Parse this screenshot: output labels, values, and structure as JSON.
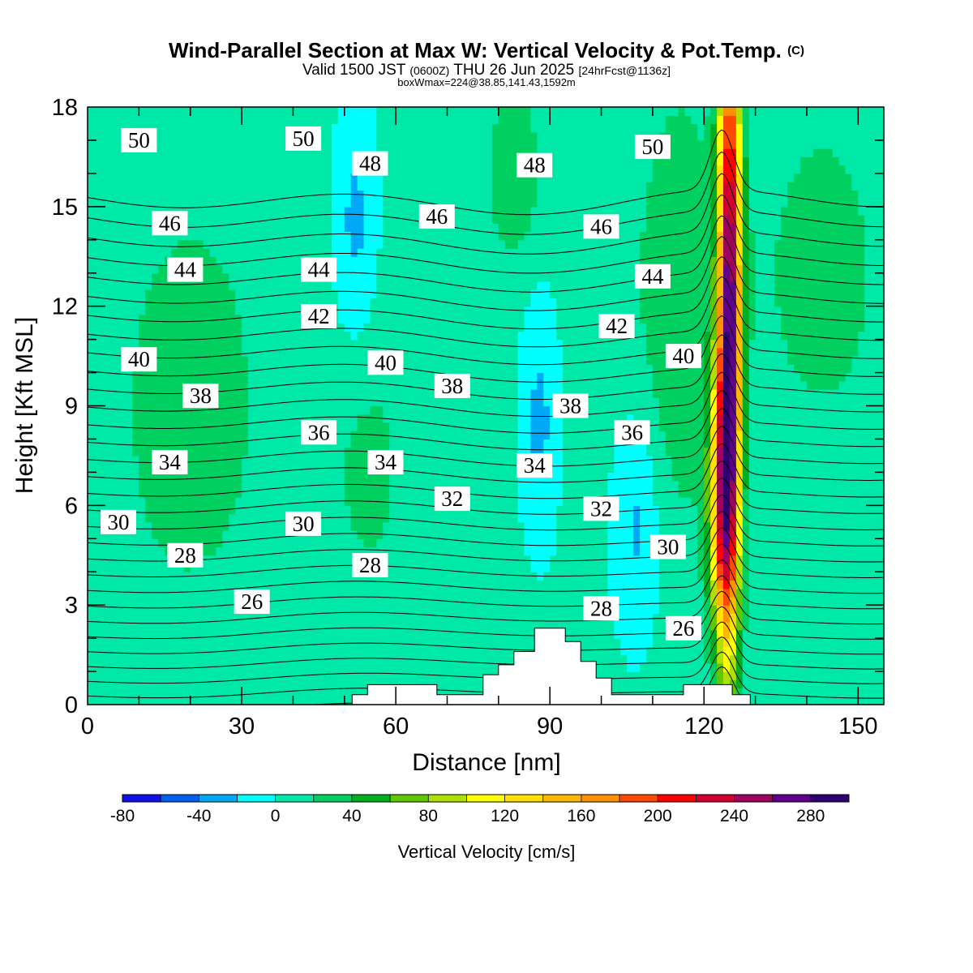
{
  "chart_data": {
    "type": "heatmap",
    "title": "Wind-Parallel Section at Max W: Vertical Velocity & Pot.Temp.",
    "title_mark": "(C)",
    "subtitle": {
      "prefix": "Valid 1500 JST ",
      "utc": "(0600Z)",
      "day": " THU 26 Jun 2025 ",
      "fcst": "[24hrFcst@1136z]"
    },
    "info_line": "boxWmax=224@38.85,141.43,1592m",
    "xlabel": "Distance [nm]",
    "ylabel": "Height [Kft MSL]",
    "xlim": [
      0,
      155
    ],
    "ylim": [
      0,
      18
    ],
    "x_ticks": [
      "0",
      "30",
      "60",
      "90",
      "120",
      "150"
    ],
    "y_ticks": [
      "0",
      "3",
      "6",
      "9",
      "12",
      "15",
      "18"
    ],
    "colorbar": {
      "label": "Vertical Velocity [cm/s]",
      "min": -80,
      "max": 300,
      "step": 20,
      "tick_labels": [
        "-80",
        "-40",
        "0",
        "40",
        "80",
        "120",
        "160",
        "200",
        "240",
        "280"
      ],
      "colors": [
        "#1010e8",
        "#0060f0",
        "#00a8f8",
        "#00ffff",
        "#00e8a8",
        "#00d060",
        "#00b020",
        "#60c800",
        "#b0e000",
        "#ffff00",
        "#ffe000",
        "#ffb800",
        "#ff9000",
        "#ff4800",
        "#ff0000",
        "#d00030",
        "#a00060",
        "#60008c",
        "#300070"
      ]
    },
    "w_background_cm_s": 5,
    "w_features": [
      {
        "x": 125.0,
        "y": 12.0,
        "value": 260,
        "x_halfwidth": 2.2,
        "y_halfwidth": 9.5
      },
      {
        "x": 123.5,
        "y": 6.0,
        "value": 150,
        "x_halfwidth": 2.6,
        "y_halfwidth": 4.0
      },
      {
        "x": 115.0,
        "y": 12.0,
        "value": 30,
        "x_halfwidth": 9.0,
        "y_halfwidth": 7.0
      },
      {
        "x": 143.0,
        "y": 13.0,
        "value": 22,
        "x_halfwidth": 14.0,
        "y_halfwidth": 6.0
      },
      {
        "x": 20.0,
        "y": 9.0,
        "value": 22,
        "x_halfwidth": 18.0,
        "y_halfwidth": 8.0
      },
      {
        "x": 83.0,
        "y": 16.0,
        "value": 35,
        "x_halfwidth": 5.0,
        "y_halfwidth": 2.5
      },
      {
        "x": 55.0,
        "y": 7.0,
        "value": 20,
        "x_halfwidth": 8.0,
        "y_halfwidth": 4.0
      },
      {
        "x": 52.0,
        "y": 14.5,
        "value": -30,
        "x_halfwidth": 4.0,
        "y_halfwidth": 3.5
      },
      {
        "x": 88.0,
        "y": 8.5,
        "value": -30,
        "x_halfwidth": 3.5,
        "y_halfwidth": 3.5
      },
      {
        "x": 107.0,
        "y": 5.5,
        "value": -32,
        "x_halfwidth": 4.5,
        "y_halfwidth": 3.5
      },
      {
        "x": 30.0,
        "y": 2.5,
        "value": -5,
        "x_halfwidth": 7.0,
        "y_halfwidth": 1.5
      },
      {
        "x": 147.0,
        "y": 5.0,
        "value": -5,
        "x_halfwidth": 5.0,
        "y_halfwidth": 3.0
      }
    ],
    "terrain_kft": {
      "x": [
        0,
        51.5,
        51.5,
        54.5,
        54.5,
        68,
        68,
        77,
        77,
        80,
        80,
        83,
        83,
        87,
        87,
        93,
        93,
        96,
        96,
        99,
        99,
        102,
        102,
        116,
        116,
        125.5,
        125.5,
        129,
        129,
        155
      ],
      "height": [
        0,
        0,
        0.3,
        0.3,
        0.6,
        0.6,
        0.3,
        0.3,
        0.9,
        0.9,
        1.2,
        1.2,
        1.6,
        1.6,
        2.3,
        2.3,
        1.9,
        1.9,
        1.3,
        1.3,
        0.8,
        0.8,
        0.3,
        0.3,
        0.6,
        0.6,
        0.3,
        0.3,
        0,
        0
      ]
    },
    "theta_contours": {
      "interval": 1,
      "min": 23,
      "max": 53,
      "ridge": {
        "x": 123.5,
        "depth_kft": 1.2,
        "halfwidth": 3.2
      }
    },
    "theta_labels": [
      {
        "text": "50",
        "x": 10,
        "y": 17.0
      },
      {
        "text": "50",
        "x": 42,
        "y": 17.05
      },
      {
        "text": "50",
        "x": 110,
        "y": 16.8
      },
      {
        "text": "48",
        "x": 55,
        "y": 16.3
      },
      {
        "text": "48",
        "x": 87,
        "y": 16.25
      },
      {
        "text": "46",
        "x": 16,
        "y": 14.5
      },
      {
        "text": "46",
        "x": 68,
        "y": 14.7
      },
      {
        "text": "46",
        "x": 100,
        "y": 14.4
      },
      {
        "text": "44",
        "x": 19,
        "y": 13.1
      },
      {
        "text": "44",
        "x": 45,
        "y": 13.1
      },
      {
        "text": "44",
        "x": 110,
        "y": 12.9
      },
      {
        "text": "42",
        "x": 45,
        "y": 11.7
      },
      {
        "text": "42",
        "x": 103,
        "y": 11.4
      },
      {
        "text": "40",
        "x": 10,
        "y": 10.4
      },
      {
        "text": "40",
        "x": 58,
        "y": 10.3
      },
      {
        "text": "40",
        "x": 116,
        "y": 10.5
      },
      {
        "text": "38",
        "x": 22,
        "y": 9.3
      },
      {
        "text": "38",
        "x": 71,
        "y": 9.6
      },
      {
        "text": "38",
        "x": 94,
        "y": 9.0
      },
      {
        "text": "36",
        "x": 45,
        "y": 8.2
      },
      {
        "text": "36",
        "x": 106,
        "y": 8.2
      },
      {
        "text": "34",
        "x": 16,
        "y": 7.3
      },
      {
        "text": "34",
        "x": 58,
        "y": 7.3
      },
      {
        "text": "34",
        "x": 87,
        "y": 7.2
      },
      {
        "text": "32",
        "x": 71,
        "y": 6.2
      },
      {
        "text": "32",
        "x": 100,
        "y": 5.9
      },
      {
        "text": "30",
        "x": 6,
        "y": 5.5
      },
      {
        "text": "30",
        "x": 42,
        "y": 5.45
      },
      {
        "text": "30",
        "x": 113,
        "y": 4.75
      },
      {
        "text": "28",
        "x": 19,
        "y": 4.5
      },
      {
        "text": "28",
        "x": 55,
        "y": 4.2
      },
      {
        "text": "28",
        "x": 100,
        "y": 2.9
      },
      {
        "text": "26",
        "x": 32,
        "y": 3.1
      },
      {
        "text": "26",
        "x": 116,
        "y": 2.3
      }
    ]
  }
}
